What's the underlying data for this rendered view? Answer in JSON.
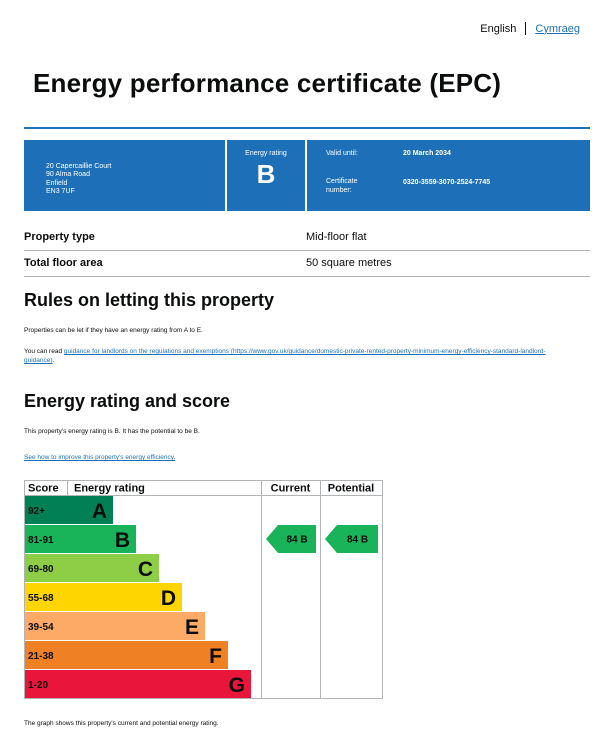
{
  "language": {
    "english": "English",
    "welsh": "Cymraeg"
  },
  "title": "Energy performance certificate (EPC)",
  "address": [
    "20 Capercaillie Court",
    "90 Alma Road",
    "Enfield",
    "EN3 7UF"
  ],
  "energy_rating": {
    "label": "Energy rating",
    "value": "B"
  },
  "valid_until": {
    "label": "Valid until:",
    "value": "20 March 2034"
  },
  "certificate_number": {
    "label": "Certificate number:",
    "value": "0320-3559-3070-2524-7745"
  },
  "property": {
    "type_label": "Property type",
    "type_value": "Mid-floor flat",
    "area_label": "Total floor area",
    "area_value": "50 square metres"
  },
  "rules": {
    "heading": "Rules on letting this property",
    "para1": "Properties can be let if they have an energy rating from A to E.",
    "para2_prefix": "You can read ",
    "para2_link": "guidance for landlords on the regulations and exemptions (https://www.gov.uk/guidance/domestic-private-rented-property-minimum-energy-efficiency-standard-landlord-guidance)",
    "para2_suffix": "."
  },
  "score_section": {
    "heading": "Energy rating and score",
    "para": "This property's energy rating is B. It has the potential to be B.",
    "link": "See how to improve this property's energy efficiency."
  },
  "chart_data": {
    "type": "table",
    "headers": {
      "score": "Score",
      "rating": "Energy rating",
      "current": "Current",
      "potential": "Potential"
    },
    "bands": [
      {
        "score": "92+",
        "letter": "A",
        "color": "#008054"
      },
      {
        "score": "81-91",
        "letter": "B",
        "color": "#19b459"
      },
      {
        "score": "69-80",
        "letter": "C",
        "color": "#8dce46"
      },
      {
        "score": "55-68",
        "letter": "D",
        "color": "#ffd500"
      },
      {
        "score": "39-54",
        "letter": "E",
        "color": "#fcaa65"
      },
      {
        "score": "21-38",
        "letter": "F",
        "color": "#ef8023"
      },
      {
        "score": "1-20",
        "letter": "G",
        "color": "#e9153b"
      }
    ],
    "current": {
      "score": 84,
      "letter": "B",
      "label": "84  B"
    },
    "potential": {
      "score": 84,
      "letter": "B",
      "label": "84  B"
    }
  },
  "caption": "The graph shows this property's current and potential energy rating."
}
